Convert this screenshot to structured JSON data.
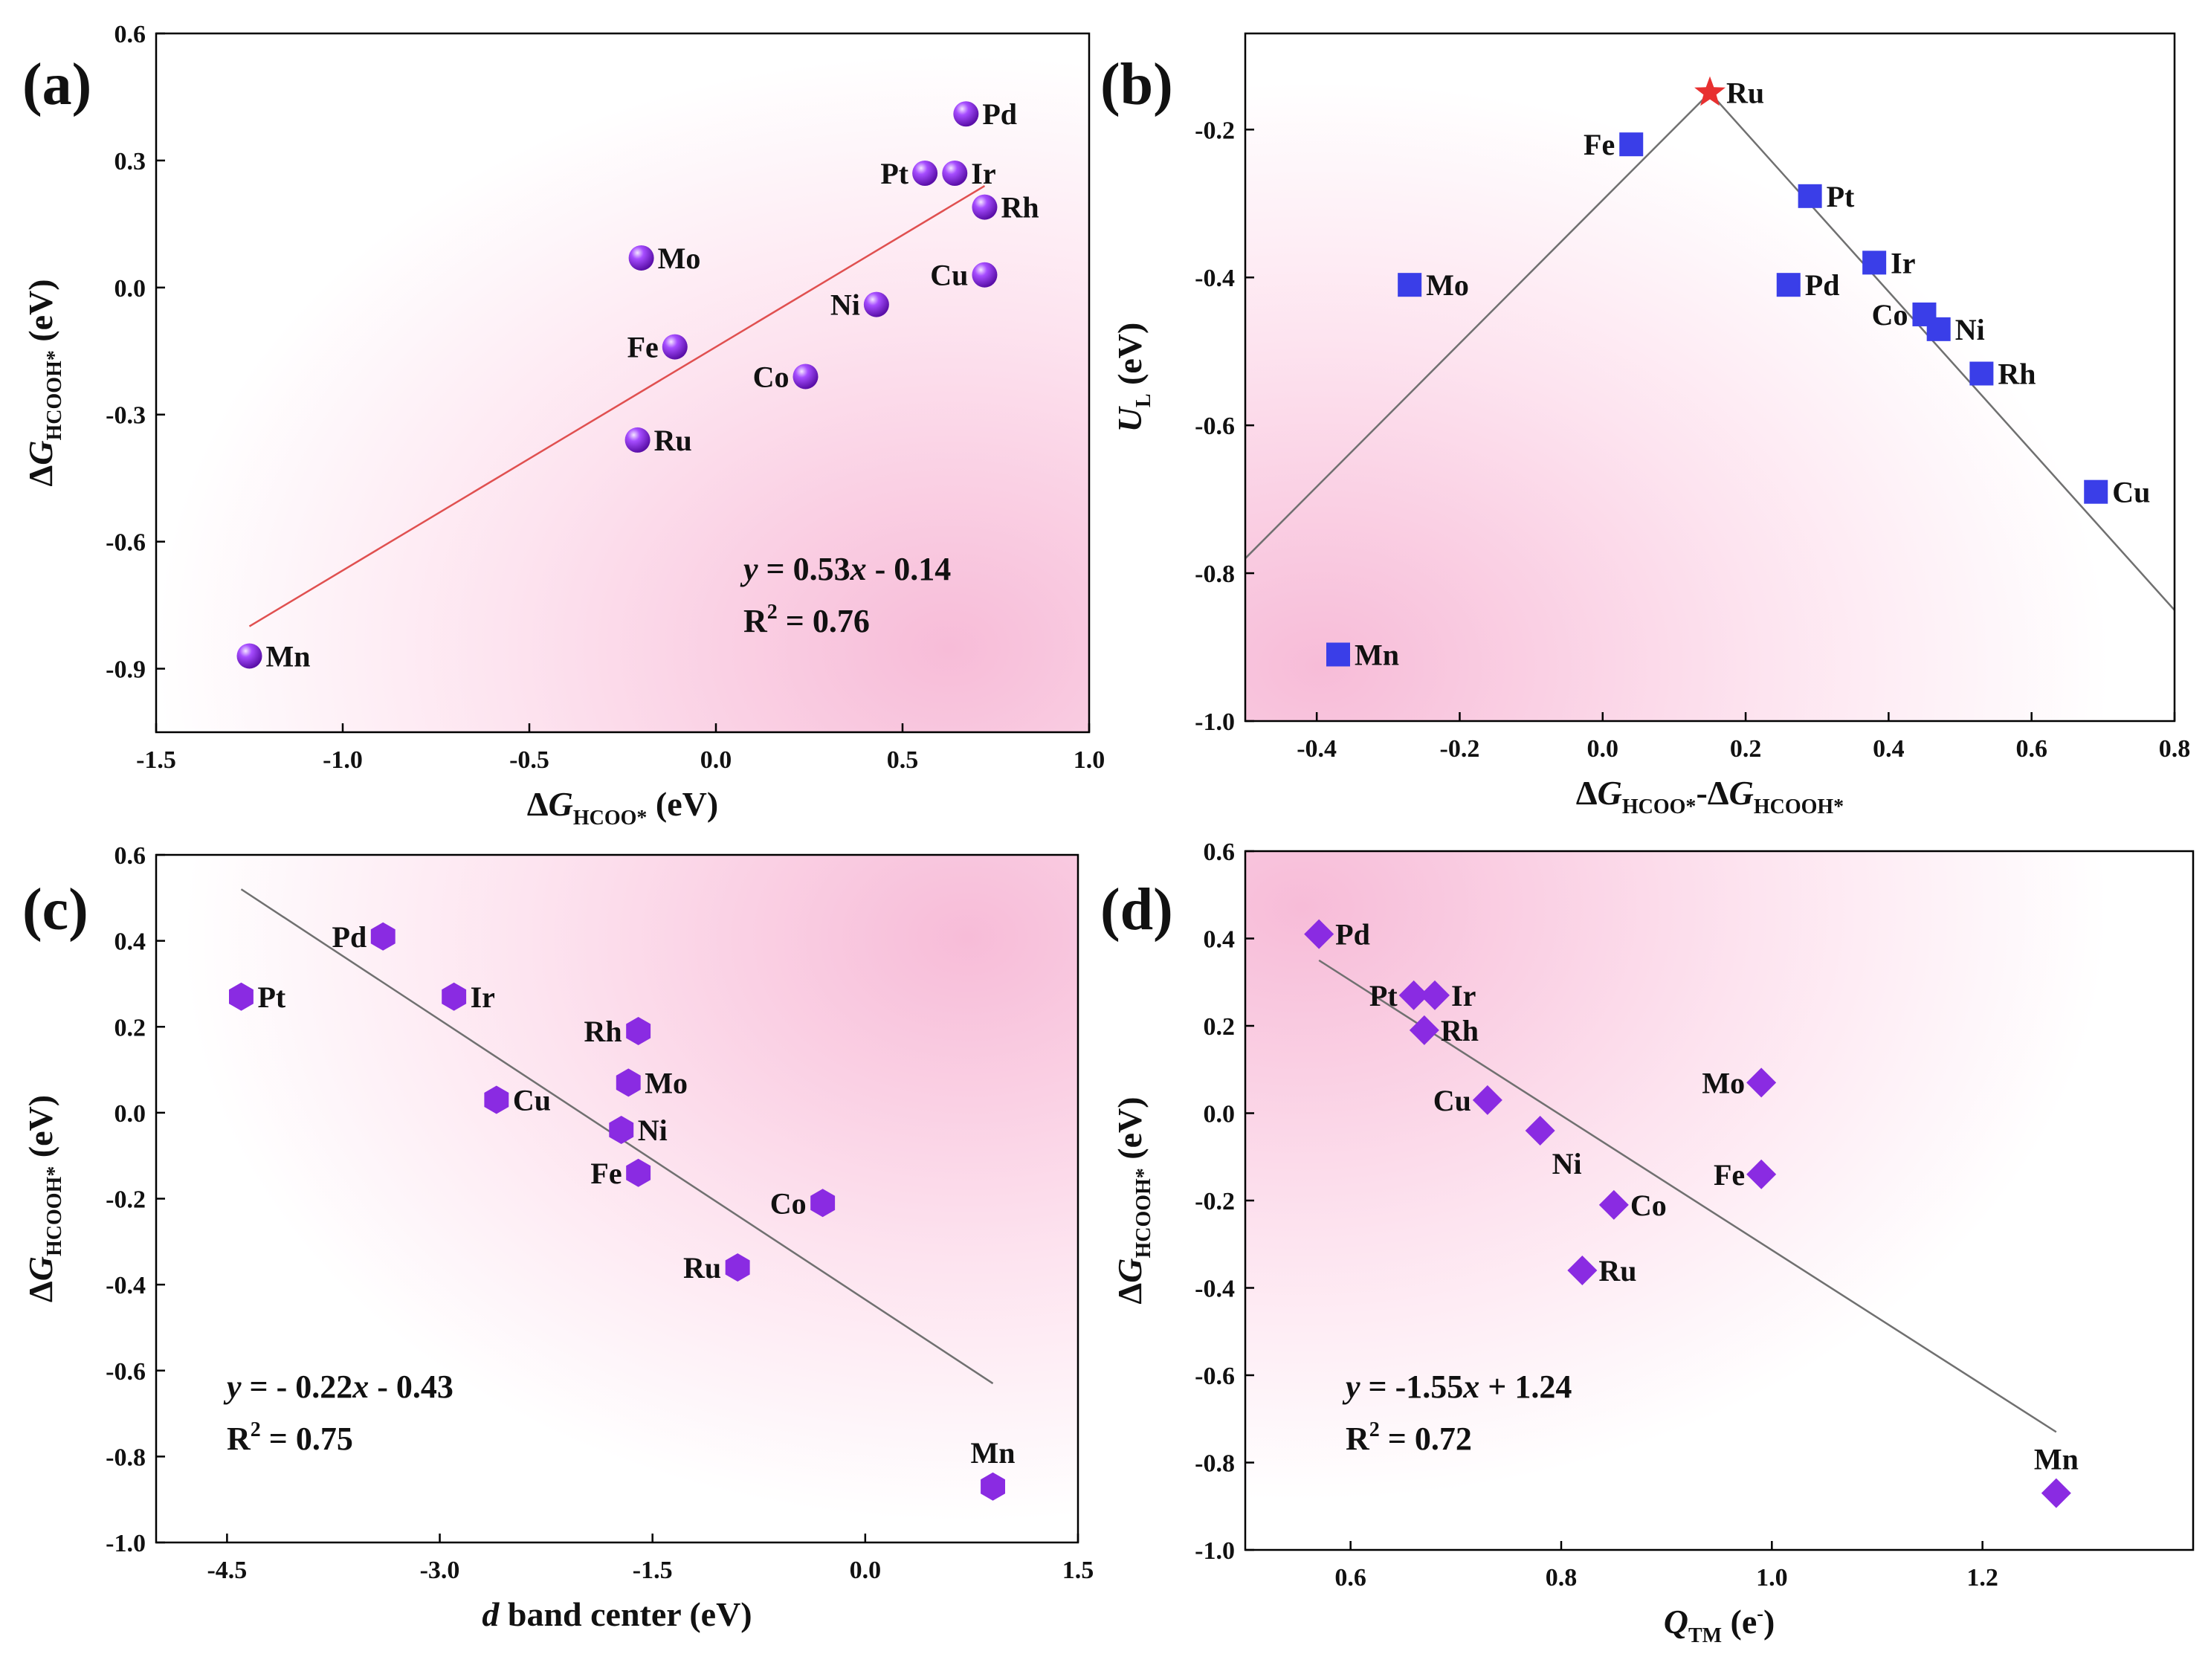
{
  "chart_data": [
    {
      "type": "scatter",
      "panel_label": "(a)",
      "x_label": {
        "prefix": "Δ",
        "main": "G",
        "sub": "HCOO*",
        "suffix": " (eV)"
      },
      "y_label": {
        "prefix": "Δ",
        "main": "G",
        "sub": "HCOOH*",
        "suffix": " (eV)"
      },
      "xlim": [
        -1.5,
        1.0
      ],
      "ylim": [
        -1.05,
        0.6
      ],
      "x_ticks": [
        {
          "v": -1.5,
          "label": "-1.5"
        },
        {
          "v": -1.0,
          "label": "-1.0"
        },
        {
          "v": -0.5,
          "label": "-0.5"
        },
        {
          "v": 0.0,
          "label": "0.0"
        },
        {
          "v": 0.5,
          "label": "0.5"
        },
        {
          "v": 1.0,
          "label": "1.0"
        }
      ],
      "y_ticks": [
        {
          "v": -0.9,
          "label": "-0.9"
        },
        {
          "v": -0.6,
          "label": "-0.6"
        },
        {
          "v": -0.3,
          "label": "-0.3"
        },
        {
          "v": 0.0,
          "label": "0.0"
        },
        {
          "v": 0.3,
          "label": "0.3"
        },
        {
          "v": 0.6,
          "label": "0.6"
        }
      ],
      "marker": "sphere",
      "marker_color": "#8a2be2",
      "points": [
        {
          "label": "Pd",
          "x": 0.67,
          "y": 0.41,
          "pos": "right"
        },
        {
          "label": "Pt",
          "x": 0.56,
          "y": 0.27,
          "pos": "left"
        },
        {
          "label": "Ir",
          "x": 0.64,
          "y": 0.27,
          "pos": "right"
        },
        {
          "label": "Rh",
          "x": 0.72,
          "y": 0.19,
          "pos": "right"
        },
        {
          "label": "Cu",
          "x": 0.72,
          "y": 0.03,
          "pos": "left"
        },
        {
          "label": "Mo",
          "x": -0.2,
          "y": 0.07,
          "pos": "right"
        },
        {
          "label": "Ni",
          "x": 0.43,
          "y": -0.04,
          "pos": "left"
        },
        {
          "label": "Fe",
          "x": -0.11,
          "y": -0.14,
          "pos": "left"
        },
        {
          "label": "Co",
          "x": 0.24,
          "y": -0.21,
          "pos": "left"
        },
        {
          "label": "Ru",
          "x": -0.21,
          "y": -0.36,
          "pos": "right"
        },
        {
          "label": "Mn",
          "x": -1.25,
          "y": -0.87,
          "pos": "right"
        }
      ],
      "fit_lines": [
        {
          "x": [
            -1.25,
            0.72
          ],
          "y": [
            -0.8,
            0.24
          ],
          "color": "#e05050"
        }
      ],
      "equation": {
        "y": "y",
        "eq": " = 0.53",
        "x": "x",
        "rest": " - 0.14"
      },
      "r2": {
        "r": "R",
        "sup": "2",
        "rest": " = 0.76"
      },
      "gradient_anchor": "bottom-right"
    },
    {
      "type": "scatter",
      "panel_label": "(b)",
      "x_label": {
        "prefix": "Δ",
        "main": "G",
        "sub": "HCOO*",
        "mid": "-Δ",
        "main2": "G",
        "sub2": "HCOOH*"
      },
      "y_label": {
        "main": "U",
        "sub": "L",
        "suffix": " (eV)"
      },
      "xlim": [
        -0.5,
        0.8
      ],
      "ylim": [
        -1.0,
        -0.07
      ],
      "x_ticks": [
        {
          "v": -0.4,
          "label": "-0.4"
        },
        {
          "v": -0.2,
          "label": "-0.2"
        },
        {
          "v": 0.0,
          "label": "0.0"
        },
        {
          "v": 0.2,
          "label": "0.2"
        },
        {
          "v": 0.4,
          "label": "0.4"
        },
        {
          "v": 0.6,
          "label": "0.6"
        },
        {
          "v": 0.8,
          "label": "0.8"
        }
      ],
      "y_ticks": [
        {
          "v": -1.0,
          "label": "-1.0"
        },
        {
          "v": -0.8,
          "label": "-0.8"
        },
        {
          "v": -0.6,
          "label": "-0.6"
        },
        {
          "v": -0.4,
          "label": "-0.4"
        },
        {
          "v": -0.2,
          "label": "-0.2"
        }
      ],
      "marker": "square",
      "marker_color": "#3a3ee8",
      "points": [
        {
          "label": "Ru",
          "x": 0.15,
          "y": -0.15,
          "pos": "right",
          "marker": "star",
          "color": "#e83030"
        },
        {
          "label": "Fe",
          "x": 0.04,
          "y": -0.22,
          "pos": "left"
        },
        {
          "label": "Pt",
          "x": 0.29,
          "y": -0.29,
          "pos": "right"
        },
        {
          "label": "Mo",
          "x": -0.27,
          "y": -0.41,
          "pos": "right"
        },
        {
          "label": "Ir",
          "x": 0.38,
          "y": -0.38,
          "pos": "right"
        },
        {
          "label": "Pd",
          "x": 0.26,
          "y": -0.41,
          "pos": "right"
        },
        {
          "label": "Co",
          "x": 0.45,
          "y": -0.45,
          "pos": "left"
        },
        {
          "label": "Ni",
          "x": 0.47,
          "y": -0.47,
          "pos": "right"
        },
        {
          "label": "Rh",
          "x": 0.53,
          "y": -0.53,
          "pos": "right"
        },
        {
          "label": "Cu",
          "x": 0.69,
          "y": -0.69,
          "pos": "right"
        },
        {
          "label": "Mn",
          "x": -0.37,
          "y": -0.91,
          "pos": "right"
        }
      ],
      "fit_lines": [
        {
          "x": [
            -0.5,
            0.15
          ],
          "y": [
            -0.78,
            -0.15
          ],
          "color": "#707070"
        },
        {
          "x": [
            0.15,
            0.8
          ],
          "y": [
            -0.15,
            -0.85
          ],
          "color": "#707070"
        }
      ],
      "gradient_anchor": "bottom-left"
    },
    {
      "type": "scatter",
      "panel_label": "(c)",
      "x_label": {
        "main": "d",
        "suffix": " band center (eV)"
      },
      "y_label": {
        "prefix": "Δ",
        "main": "G",
        "sub": "HCOOH*",
        "suffix": " (eV)"
      },
      "xlim": [
        -5.0,
        1.5
      ],
      "ylim": [
        -1.0,
        0.6
      ],
      "x_ticks": [
        {
          "v": -4.5,
          "label": "-4.5"
        },
        {
          "v": -3.0,
          "label": "-3.0"
        },
        {
          "v": -1.5,
          "label": "-1.5"
        },
        {
          "v": 0.0,
          "label": "0.0"
        },
        {
          "v": 1.5,
          "label": "1.5"
        }
      ],
      "y_ticks": [
        {
          "v": -1.0,
          "label": "-1.0"
        },
        {
          "v": -0.8,
          "label": "-0.8"
        },
        {
          "v": -0.6,
          "label": "-0.6"
        },
        {
          "v": -0.4,
          "label": "-0.4"
        },
        {
          "v": -0.2,
          "label": "-0.2"
        },
        {
          "v": 0.0,
          "label": "0.0"
        },
        {
          "v": 0.2,
          "label": "0.2"
        },
        {
          "v": 0.4,
          "label": "0.4"
        },
        {
          "v": 0.6,
          "label": "0.6"
        }
      ],
      "marker": "hexagon",
      "marker_color": "#8a2be2",
      "points": [
        {
          "label": "Pd",
          "x": -3.4,
          "y": 0.41,
          "pos": "left"
        },
        {
          "label": "Pt",
          "x": -4.4,
          "y": 0.27,
          "pos": "right"
        },
        {
          "label": "Ir",
          "x": -2.9,
          "y": 0.27,
          "pos": "right"
        },
        {
          "label": "Rh",
          "x": -1.6,
          "y": 0.19,
          "pos": "left"
        },
        {
          "label": "Mo",
          "x": -1.67,
          "y": 0.07,
          "pos": "right"
        },
        {
          "label": "Cu",
          "x": -2.6,
          "y": 0.03,
          "pos": "right"
        },
        {
          "label": "Ni",
          "x": -1.72,
          "y": -0.04,
          "pos": "right"
        },
        {
          "label": "Fe",
          "x": -1.6,
          "y": -0.14,
          "pos": "left"
        },
        {
          "label": "Co",
          "x": -0.3,
          "y": -0.21,
          "pos": "left"
        },
        {
          "label": "Ru",
          "x": -0.9,
          "y": -0.36,
          "pos": "left"
        },
        {
          "label": "Mn",
          "x": 0.9,
          "y": -0.87,
          "pos": "above"
        }
      ],
      "fit_lines": [
        {
          "x": [
            -4.4,
            0.9
          ],
          "y": [
            0.52,
            -0.63
          ],
          "color": "#707070"
        }
      ],
      "equation": {
        "y": "y",
        "eq": " = - 0.22",
        "x": "x",
        "rest": " - 0.43"
      },
      "r2": {
        "r": "R",
        "sup": "2",
        "rest": " = 0.75"
      },
      "gradient_anchor": "top-right"
    },
    {
      "type": "scatter",
      "panel_label": "(d)",
      "x_label": {
        "main": "Q",
        "sub": "TM",
        "suffix": " (e",
        "sup": "-",
        "suffix2": ")"
      },
      "y_label": {
        "prefix": "Δ",
        "main": "G",
        "sub": "HCOOH*",
        "suffix": " (eV)"
      },
      "xlim": [
        0.5,
        1.4
      ],
      "ylim": [
        -1.0,
        0.6
      ],
      "x_ticks": [
        {
          "v": 0.6,
          "label": "0.6"
        },
        {
          "v": 0.8,
          "label": "0.8"
        },
        {
          "v": 1.0,
          "label": "1.0"
        },
        {
          "v": 1.2,
          "label": "1.2"
        }
      ],
      "y_ticks": [
        {
          "v": -1.0,
          "label": "-1.0"
        },
        {
          "v": -0.8,
          "label": "-0.8"
        },
        {
          "v": -0.6,
          "label": "-0.6"
        },
        {
          "v": -0.4,
          "label": "-0.4"
        },
        {
          "v": -0.2,
          "label": "-0.2"
        },
        {
          "v": 0.0,
          "label": "0.0"
        },
        {
          "v": 0.2,
          "label": "0.2"
        },
        {
          "v": 0.4,
          "label": "0.4"
        },
        {
          "v": 0.6,
          "label": "0.6"
        }
      ],
      "marker": "diamond",
      "marker_color": "#8a2be2",
      "points": [
        {
          "label": "Pd",
          "x": 0.57,
          "y": 0.41,
          "pos": "right"
        },
        {
          "label": "Pt",
          "x": 0.66,
          "y": 0.27,
          "pos": "left"
        },
        {
          "label": "Ir",
          "x": 0.68,
          "y": 0.27,
          "pos": "right"
        },
        {
          "label": "Rh",
          "x": 0.67,
          "y": 0.19,
          "pos": "right"
        },
        {
          "label": "Cu",
          "x": 0.73,
          "y": 0.03,
          "pos": "left"
        },
        {
          "label": "Ni",
          "x": 0.78,
          "y": -0.04,
          "pos": "below-right"
        },
        {
          "label": "Co",
          "x": 0.85,
          "y": -0.21,
          "pos": "right"
        },
        {
          "label": "Ru",
          "x": 0.82,
          "y": -0.36,
          "pos": "right"
        },
        {
          "label": "Mo",
          "x": 0.99,
          "y": 0.07,
          "pos": "left"
        },
        {
          "label": "Fe",
          "x": 0.99,
          "y": -0.14,
          "pos": "left"
        },
        {
          "label": "Mn",
          "x": 1.27,
          "y": -0.87,
          "pos": "above"
        }
      ],
      "fit_lines": [
        {
          "x": [
            0.57,
            1.27
          ],
          "y": [
            0.35,
            -0.73
          ],
          "color": "#707070"
        }
      ],
      "equation": {
        "y": "y",
        "eq": " = -1.55",
        "x": "x",
        "rest": " + 1.24"
      },
      "r2": {
        "r": "R",
        "sup": "2",
        "rest": " = 0.72"
      },
      "gradient_anchor": "top-left"
    }
  ]
}
